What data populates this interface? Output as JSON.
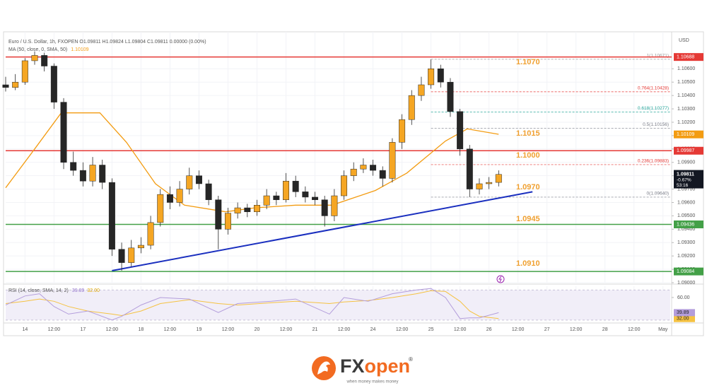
{
  "chart_data": {
    "type": "candlestick",
    "title": "Euro / U.S. Dollar, 1h, FXOPEN  O1.09811 H1.09824 L1.09804 C1.09811 0.00000 (0.00%)",
    "currency": "USD",
    "x": [
      0,
      4,
      8,
      12,
      16,
      20,
      24,
      28,
      32,
      36,
      40,
      44,
      48,
      52,
      56,
      60,
      64,
      68,
      72,
      76,
      80,
      84,
      88,
      92,
      96,
      100,
      104,
      108,
      112,
      116,
      120,
      124,
      128,
      132,
      136,
      140,
      144,
      148,
      152,
      156,
      160,
      164,
      168,
      172,
      176,
      180,
      184,
      188,
      192,
      196,
      200,
      204
    ],
    "open": [
      1.1048,
      1.1046,
      1.105,
      1.1066,
      1.107,
      1.1062,
      1.1035,
      1.099,
      1.0984,
      1.0976,
      1.0988,
      1.0975,
      1.0925,
      1.0915,
      1.0926,
      1.0928,
      1.0945,
      1.0966,
      1.096,
      1.097,
      1.098,
      1.0974,
      1.0962,
      1.094,
      1.0952,
      1.0956,
      1.0953,
      1.0958,
      1.0965,
      1.0962,
      1.0976,
      1.0968,
      1.0964,
      1.0962,
      1.095,
      1.0965,
      1.098,
      1.0985,
      1.0988,
      1.0984,
      1.0978,
      1.1005,
      1.1022,
      1.104,
      1.1048,
      1.106,
      1.105,
      1.1028,
      1.1,
      1.097,
      1.0974,
      1.0975
    ],
    "high": [
      1.1054,
      1.1056,
      1.1068,
      1.1073,
      1.1072,
      1.1064,
      1.1038,
      1.0998,
      1.099,
      1.0994,
      1.0992,
      1.0978,
      1.093,
      1.0932,
      1.0934,
      1.095,
      1.097,
      1.0972,
      1.0976,
      1.0986,
      1.0984,
      1.0977,
      1.0965,
      1.0956,
      1.096,
      1.0959,
      1.0962,
      1.097,
      1.0968,
      1.0982,
      1.098,
      1.0972,
      1.0968,
      1.0965,
      1.097,
      1.0984,
      1.099,
      1.0993,
      1.0992,
      1.0987,
      1.1008,
      1.1026,
      1.1044,
      1.1054,
      1.1067,
      1.1063,
      1.1053,
      1.103,
      1.1003,
      1.0978,
      1.0979,
      1.0984
    ],
    "low": [
      1.1043,
      1.1044,
      1.1048,
      1.1063,
      1.1058,
      1.103,
      1.0985,
      1.098,
      1.0972,
      1.0972,
      1.097,
      1.092,
      1.0909,
      1.0912,
      1.0922,
      1.0925,
      1.0942,
      1.0955,
      1.0957,
      1.0966,
      1.097,
      1.0958,
      1.0925,
      1.0936,
      1.0948,
      1.0949,
      1.095,
      1.0955,
      1.0958,
      1.096,
      1.0964,
      1.096,
      1.0958,
      1.0942,
      1.0946,
      1.0962,
      1.0976,
      1.0982,
      1.098,
      1.0972,
      1.0975,
      1.1,
      1.1018,
      1.1036,
      1.1045,
      1.1046,
      1.1024,
      1.0995,
      1.0964,
      1.0966,
      1.097,
      1.0972
    ],
    "close": [
      1.1046,
      1.105,
      1.1066,
      1.107,
      1.1062,
      1.1035,
      1.099,
      1.0984,
      1.0976,
      1.0988,
      1.0975,
      1.0925,
      1.0915,
      1.0926,
      1.0928,
      1.0945,
      1.0966,
      1.096,
      1.097,
      1.098,
      1.0974,
      1.0962,
      1.094,
      1.0952,
      1.0956,
      1.0953,
      1.0958,
      1.0965,
      1.0962,
      1.0976,
      1.0968,
      1.0964,
      1.0962,
      1.095,
      1.0965,
      1.098,
      1.0985,
      1.0988,
      1.0984,
      1.0978,
      1.1005,
      1.1022,
      1.104,
      1.1048,
      1.106,
      1.105,
      1.1028,
      1.1,
      1.097,
      1.0974,
      1.0975,
      1.0981
    ],
    "up_color": "#f5a623",
    "down_color": "#262626",
    "xlim": [
      0,
      275
    ],
    "xticks": [
      {
        "value": 8,
        "label": "14"
      },
      {
        "value": 20,
        "label": "12:00"
      },
      {
        "value": 32,
        "label": "17"
      },
      {
        "value": 44,
        "label": "12:00"
      },
      {
        "value": 56,
        "label": "18"
      },
      {
        "value": 68,
        "label": "12:00"
      },
      {
        "value": 80,
        "label": "19"
      },
      {
        "value": 92,
        "label": "12:00"
      },
      {
        "value": 104,
        "label": "20"
      },
      {
        "value": 116,
        "label": "12:00"
      },
      {
        "value": 128,
        "label": "21"
      },
      {
        "value": 140,
        "label": "12:00"
      },
      {
        "value": 152,
        "label": "24"
      },
      {
        "value": 164,
        "label": "12:00"
      },
      {
        "value": 176,
        "label": "25"
      },
      {
        "value": 188,
        "label": "12:00"
      },
      {
        "value": 200,
        "label": "26"
      },
      {
        "value": 212,
        "label": "12:00"
      },
      {
        "value": 224,
        "label": "27"
      },
      {
        "value": 236,
        "label": "12:00"
      },
      {
        "value": 248,
        "label": "28"
      },
      {
        "value": 260,
        "label": "12:00"
      },
      {
        "value": 272,
        "label": "May"
      }
    ],
    "ylim": [
      1.09,
      1.1085
    ],
    "yticks": [
      {
        "value": 1.09,
        "label": "1.09000"
      },
      {
        "value": 1.091,
        "label": "1.09100"
      },
      {
        "value": 1.092,
        "label": "1.09200"
      },
      {
        "value": 1.093,
        "label": "1.09300"
      },
      {
        "value": 1.094,
        "label": "1.09400"
      },
      {
        "value": 1.095,
        "label": "1.09500"
      },
      {
        "value": 1.096,
        "label": "1.09600"
      },
      {
        "value": 1.097,
        "label": "1.09700"
      },
      {
        "value": 1.098,
        "label": "1.09800"
      },
      {
        "value": 1.099,
        "label": "1.09900"
      },
      {
        "value": 1.1,
        "label": "1.10000"
      },
      {
        "value": 1.101,
        "label": "1.10100"
      },
      {
        "value": 1.102,
        "label": "1.10200"
      },
      {
        "value": 1.103,
        "label": "1.10300"
      },
      {
        "value": 1.104,
        "label": "1.10400"
      },
      {
        "value": 1.105,
        "label": "1.10500"
      },
      {
        "value": 1.106,
        "label": "1.10600"
      }
    ],
    "grid": true,
    "ma": {
      "label": "MA (50, close, 0, SMA, 50)",
      "value": 1.10109,
      "color": "#f39c12",
      "x": [
        0,
        12,
        23,
        39,
        50,
        62,
        74,
        91,
        103,
        120,
        135,
        153,
        166,
        182,
        191,
        204
      ],
      "values": [
        1.0971,
        1.1,
        1.1027,
        1.1027,
        1.1005,
        1.0974,
        1.0958,
        1.0953,
        1.0956,
        1.0958,
        1.0958,
        1.0969,
        1.0982,
        1.1006,
        1.1015,
        1.1011
      ]
    },
    "levels": [
      {
        "value": 1.10688,
        "color": "#e53935",
        "line": true
      },
      {
        "value": 1.10109,
        "color": "#f39c12",
        "line": false
      },
      {
        "value": 1.09987,
        "color": "#e53935",
        "line": true
      },
      {
        "value": 1.09436,
        "color": "#43a047",
        "line": true
      },
      {
        "value": 1.09084,
        "color": "#43a047",
        "line": true
      }
    ],
    "current": {
      "value": 1.09811,
      "change": "-0.67%",
      "countdown": "53:16",
      "color": "#131722"
    },
    "annotations": [
      "1.1070",
      "1.1015",
      "1.1000",
      "1.0970",
      "1.0945",
      "1.0910"
    ],
    "annotation_color": "#f0a030",
    "fib": {
      "x": [
        176,
        275
      ],
      "levels": [
        {
          "value": 1.10671,
          "label": "1(1.10671)",
          "color": "#9e9e9e"
        },
        {
          "value": 1.10428,
          "label": "0.764(1.10428)",
          "color": "#e53935"
        },
        {
          "value": 1.10277,
          "label": "0.618(1.10277)",
          "color": "#26a69a"
        },
        {
          "value": 1.10156,
          "label": "0.5(1.10156)",
          "color": "#787b86"
        },
        {
          "value": 1.09883,
          "label": "0.236(1.09883)",
          "color": "#e53935"
        },
        {
          "value": 1.0964,
          "label": "0(1.09640)",
          "color": "#787b86"
        }
      ]
    },
    "trendline": {
      "x": [
        44,
        218
      ],
      "values": [
        1.0909,
        1.0968
      ],
      "color": "#1a2fbf"
    },
    "rsi": {
      "label": "RSI (14, close, SMA, 14, 2)",
      "ylim": [
        28,
        75
      ],
      "band": [
        30,
        70
      ],
      "yticks": [
        {
          "value": 60,
          "label": "60.00"
        }
      ],
      "line": {
        "color": "#b39ddb",
        "end_label": "39.89",
        "x": [
          0,
          8,
          14,
          20,
          26,
          34,
          44,
          48,
          56,
          64,
          76,
          88,
          96,
          110,
          120,
          134,
          140,
          150,
          160,
          170,
          176,
          182,
          188,
          192,
          196,
          204
        ],
        "values": [
          50,
          62,
          65,
          48,
          38,
          42,
          30,
          35,
          50,
          60,
          58,
          40,
          52,
          55,
          58,
          38,
          60,
          55,
          65,
          70,
          72,
          60,
          32,
          33,
          33,
          39.89
        ]
      },
      "sma": {
        "color": "#f5c242",
        "end_label": "32.00",
        "x": [
          0,
          8,
          14,
          20,
          26,
          34,
          44,
          48,
          56,
          64,
          76,
          88,
          96,
          110,
          120,
          134,
          140,
          150,
          160,
          170,
          176,
          182,
          188,
          192,
          196,
          204
        ],
        "values": [
          52,
          55,
          58,
          55,
          48,
          42,
          38,
          36,
          42,
          52,
          57,
          52,
          50,
          53,
          55,
          52,
          54,
          56,
          60,
          65,
          69,
          68,
          55,
          42,
          35,
          32
        ]
      }
    }
  },
  "logo": {
    "brand_1": "FX",
    "brand_2": "open",
    "mark": "®",
    "tagline": "when money makes money"
  }
}
